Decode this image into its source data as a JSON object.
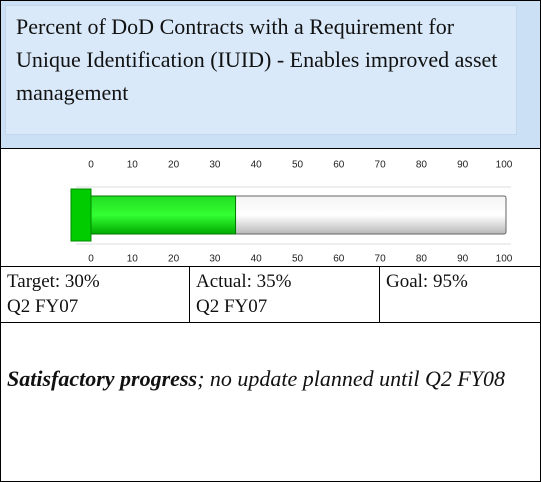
{
  "header": {
    "title": "Percent of DoD Contracts with a Requirement for Unique Identification (IUID) - Enables improved asset management"
  },
  "chart_data": {
    "type": "bar",
    "values": [
      35
    ],
    "color": "#00cc00",
    "xlim": [
      0,
      100
    ],
    "xticks": [
      0,
      10,
      20,
      30,
      40,
      50,
      60,
      70,
      80,
      90,
      100
    ]
  },
  "table": {
    "cells": [
      [
        "Target: 30%",
        "Q2 FY07"
      ],
      [
        "Actual: 35%",
        "Q2 FY07"
      ],
      [
        "Goal: 95%"
      ]
    ]
  },
  "note": {
    "emphasis": "Satisfactory progress",
    "text": "; no update planned until Q2 FY08"
  }
}
